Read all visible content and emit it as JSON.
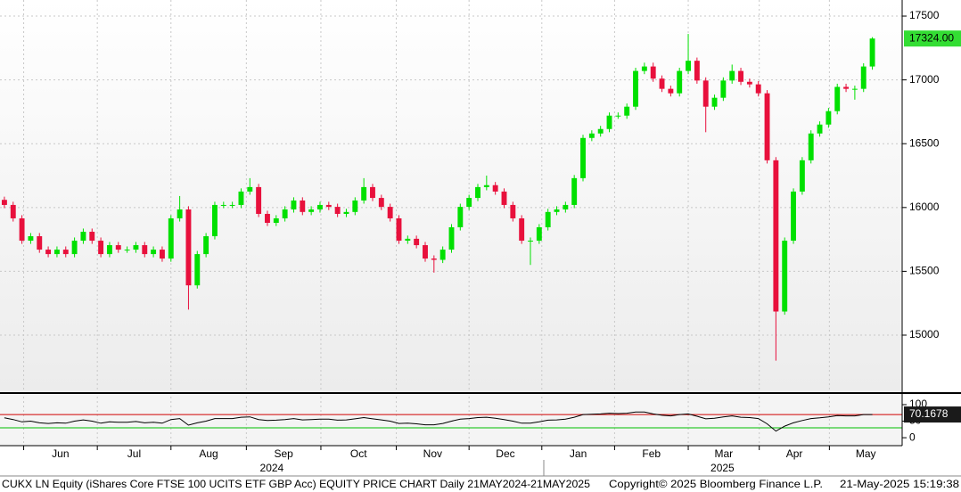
{
  "chart_data": [
    {
      "type": "candlestick",
      "open": [
        16060,
        16020,
        15915,
        15740,
        15775,
        15670,
        15635,
        15670,
        15635,
        15740,
        15810,
        15740,
        15635,
        15705,
        15670,
        15670,
        15705,
        15635,
        15670,
        15600,
        15915,
        15985,
        15390,
        15635,
        15775,
        16020,
        16020,
        16020,
        16125,
        16160,
        15950,
        15880,
        15915,
        15985,
        16055,
        15965,
        15985,
        16020,
        16005,
        15950,
        15965,
        16055,
        16160,
        16075,
        16005,
        15915,
        15740,
        15755,
        15705,
        15600,
        15590,
        15670,
        15845,
        16005,
        16075,
        16160,
        16175,
        16125,
        16020,
        15915,
        15740,
        15740,
        15845,
        15965,
        15985,
        16020,
        16230,
        16545,
        16580,
        16615,
        16720,
        16720,
        16790,
        17070,
        17105,
        17010,
        16930,
        16895,
        17070,
        17150,
        16995,
        16790,
        16860,
        16995,
        17070,
        16985,
        16965,
        16895,
        16370,
        15185,
        15740,
        16125,
        16370,
        16580,
        16650,
        16755,
        16945,
        16930,
        16930,
        17105
      ],
      "high": [
        16085,
        16045,
        15940,
        15800,
        15800,
        15695,
        15695,
        15695,
        15765,
        15835,
        15835,
        15765,
        15730,
        15730,
        15695,
        15730,
        15730,
        15695,
        15695,
        15940,
        16090,
        16010,
        15660,
        15800,
        16045,
        16045,
        16045,
        16150,
        16230,
        16185,
        15975,
        15940,
        16010,
        16080,
        16080,
        16010,
        16045,
        16045,
        16030,
        15990,
        16080,
        16230,
        16185,
        16100,
        16030,
        15940,
        15780,
        15780,
        15730,
        15625,
        15695,
        15870,
        16030,
        16100,
        16185,
        16250,
        16200,
        16150,
        16045,
        15940,
        15765,
        15870,
        15990,
        16010,
        16045,
        16255,
        16570,
        16605,
        16640,
        16745,
        16745,
        16815,
        17095,
        17135,
        17135,
        17035,
        16955,
        17095,
        17360,
        17175,
        17020,
        16885,
        17020,
        17120,
        17095,
        17010,
        16990,
        16920,
        16395,
        15765,
        16150,
        16395,
        16605,
        16675,
        16780,
        16970,
        16970,
        16955,
        17130,
        17335
      ],
      "low": [
        15995,
        15890,
        15715,
        15715,
        15645,
        15610,
        15610,
        15610,
        15610,
        15715,
        15715,
        15610,
        15610,
        15645,
        15645,
        15645,
        15610,
        15610,
        15575,
        15575,
        15890,
        15200,
        15365,
        15610,
        15750,
        15995,
        15995,
        15995,
        16100,
        15925,
        15855,
        15855,
        15890,
        15960,
        15940,
        15940,
        15960,
        15980,
        15925,
        15925,
        15940,
        16030,
        16050,
        15980,
        15890,
        15715,
        15715,
        15680,
        15575,
        15490,
        15565,
        15645,
        15820,
        15980,
        16050,
        16135,
        16100,
        15995,
        15890,
        15715,
        15550,
        15715,
        15820,
        15940,
        15960,
        15995,
        16205,
        16520,
        16555,
        16590,
        16695,
        16695,
        16765,
        17045,
        16985,
        16905,
        16870,
        16870,
        17045,
        16970,
        16590,
        16765,
        16835,
        16970,
        16960,
        16940,
        16870,
        16345,
        14800,
        15160,
        15715,
        16100,
        16345,
        16555,
        16625,
        16730,
        16905,
        16845,
        16905,
        17080
      ],
      "close": [
        16020,
        15915,
        15740,
        15775,
        15670,
        15635,
        15670,
        15635,
        15740,
        15810,
        15740,
        15635,
        15705,
        15670,
        15670,
        15705,
        15635,
        15670,
        15600,
        15915,
        15985,
        15390,
        15635,
        15775,
        16020,
        16020,
        16020,
        16125,
        16160,
        15950,
        15880,
        15915,
        15985,
        16055,
        15965,
        15985,
        16020,
        16005,
        15950,
        15965,
        16055,
        16160,
        16075,
        16005,
        15915,
        15740,
        15755,
        15705,
        15600,
        15590,
        15670,
        15845,
        16005,
        16075,
        16160,
        16175,
        16125,
        16020,
        15915,
        15740,
        15740,
        15845,
        15965,
        15985,
        16020,
        16230,
        16545,
        16580,
        16615,
        16720,
        16720,
        16790,
        17070,
        17105,
        17010,
        16930,
        16895,
        17070,
        17150,
        16995,
        16790,
        16860,
        16995,
        17070,
        16985,
        16965,
        16895,
        16370,
        15185,
        15740,
        16125,
        16370,
        16580,
        16650,
        16755,
        16945,
        16930,
        16930,
        17105,
        17324
      ],
      "last_value_label": "17324.00",
      "up_color": "#00e000",
      "down_color": "#e8103c",
      "last_color": "#33dd33",
      "ylim": [
        14546,
        17626
      ],
      "yticks": [
        15000,
        15500,
        16000,
        16500,
        17000,
        17500
      ],
      "xlim": [
        -0.5,
        102.4
      ],
      "xticks": [
        {
          "value": 2.2,
          "label": "Jun"
        },
        {
          "value": 10.6,
          "label": "Jul"
        },
        {
          "value": 19,
          "label": "Aug"
        },
        {
          "value": 27.6,
          "label": "Sep"
        },
        {
          "value": 36.1,
          "label": "Oct"
        },
        {
          "value": 44.7,
          "label": "Nov"
        },
        {
          "value": 53,
          "label": "Dec"
        },
        {
          "value": 61.3,
          "label": "Jan"
        },
        {
          "value": 69.6,
          "label": "Feb"
        },
        {
          "value": 78,
          "label": "Mar"
        },
        {
          "value": 86.1,
          "label": "Apr"
        },
        {
          "value": 94.1,
          "label": "May"
        }
      ],
      "year_ticks": [
        {
          "value": 30.5,
          "label": "2024"
        },
        {
          "value": 81.9,
          "label": "2025"
        }
      ],
      "grid": true
    },
    {
      "type": "line",
      "values": [
        60,
        55,
        48,
        50,
        45,
        43,
        45,
        44,
        50,
        54,
        50,
        44,
        48,
        47,
        47,
        49,
        45,
        47,
        44,
        55,
        58,
        38,
        45,
        50,
        58,
        58,
        58,
        62,
        63,
        55,
        52,
        53,
        55,
        58,
        54,
        55,
        56,
        56,
        53,
        54,
        57,
        61,
        57,
        54,
        50,
        43,
        44,
        42,
        39,
        39,
        43,
        50,
        56,
        58,
        61,
        62,
        59,
        55,
        50,
        44,
        44,
        48,
        53,
        54,
        56,
        62,
        70,
        71,
        72,
        74,
        73,
        74,
        78,
        78,
        72,
        68,
        66,
        70,
        72,
        65,
        57,
        59,
        63,
        66,
        62,
        61,
        58,
        42,
        20,
        35,
        45,
        52,
        58,
        60,
        63,
        67,
        66,
        66,
        70,
        70.1678
      ],
      "color": "#000000",
      "last_color": "#1a1a1a",
      "ylim": [
        -24,
        135
      ],
      "yticks": [
        0,
        50,
        100
      ],
      "reference_lines": [
        {
          "value": 70,
          "color": "#d00000"
        },
        {
          "value": 30,
          "color": "#00c000"
        }
      ]
    }
  ],
  "footer": {
    "description": "CUKX LN Equity (iShares Core FTSE 100 UCITS ETF GBP Acc) EQUITY PRICE CHART  Daily 21MAY2024-21MAY2025",
    "copyright": "Copyright© 2025 Bloomberg Finance L.P.",
    "timestamp": "21-May-2025 15:19:38"
  }
}
